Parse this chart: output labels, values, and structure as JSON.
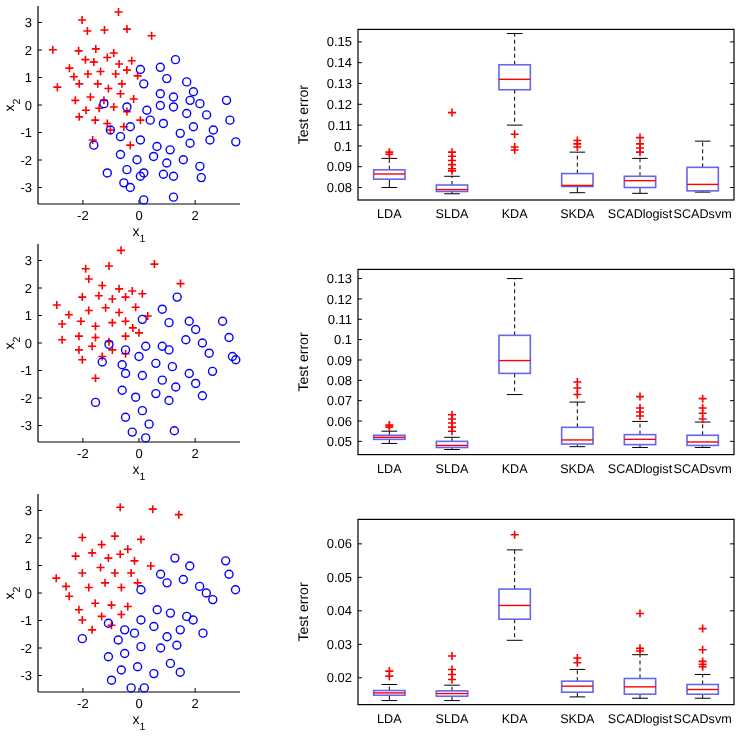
{
  "chart_data": [
    {
      "type": "scatter",
      "xlabel": "x$_{1}$",
      "ylabel": "x$_{2}$",
      "xlim": [
        -3.6,
        3.6
      ],
      "ylim": [
        -3.6,
        3.6
      ],
      "xticks": [
        -2,
        0,
        2
      ],
      "yticks": [
        -3,
        -2,
        -1,
        0,
        1,
        2,
        3
      ],
      "series": [
        {
          "color": "#ff0000",
          "marker": "cross",
          "x": [
            -3.07,
            -2.03,
            -0.73,
            -1.84,
            -1.23,
            -0.43,
            0.45,
            -2.15,
            -1.54,
            -0.9,
            -2.48,
            -1.91,
            -1.61,
            -1.13,
            -0.71,
            -0.26,
            -2.32,
            -1.82,
            -1.37,
            -0.83,
            -0.43,
            -2.91,
            -2.13,
            -1.47,
            -1.09,
            -0.61,
            -0.05,
            -2.27,
            -1.73,
            -1.25,
            -0.66,
            -0.19,
            -1.89,
            -1.42,
            -0.9,
            -0.43,
            -2.13,
            -1.56,
            -1.13,
            -0.54,
            0.05,
            -1.65,
            -1.02,
            -0.31
          ],
          "values": [
            2.01,
            3.09,
            3.38,
            2.69,
            2.73,
            2.76,
            2.52,
            1.97,
            2.04,
            1.89,
            1.34,
            1.65,
            1.56,
            1.73,
            1.49,
            1.61,
            1.03,
            1.13,
            1.22,
            1.13,
            1.27,
            0.65,
            0.77,
            0.77,
            0.6,
            0.77,
            1.06,
            0.17,
            0.29,
            0.17,
            0.41,
            0.22,
            -0.19,
            -0.12,
            -0.07,
            -0.24,
            -0.43,
            -0.55,
            -0.67,
            -0.79,
            -0.55,
            -1.27,
            -0.91,
            -1.46
          ]
        },
        {
          "color": "#0000ff",
          "marker": "circle",
          "x": [
            1.3,
            0.76,
            0.05,
            0.99,
            1.7,
            1.94,
            0.17,
            0.76,
            1.23,
            1.82,
            2.17,
            -1.25,
            -0.43,
            0.28,
            0.76,
            1.23,
            1.7,
            2.41,
            3.12,
            -1.02,
            -0.31,
            0.4,
            0.87,
            1.47,
            1.94,
            2.65,
            3.24,
            3.45,
            -0.66,
            0.05,
            0.64,
            1.11,
            1.82,
            2.53,
            -1.61,
            -0.66,
            -0.07,
            0.52,
            0.99,
            1.58,
            2.17,
            -1.13,
            -0.43,
            0.17,
            0.87,
            -0.54,
            0.05,
            -0.31,
            1.23,
            2.22,
            0.17,
            1.23
          ],
          "values": [
            1.65,
            1.37,
            1.29,
            0.96,
            0.84,
            0.48,
            0.77,
            0.41,
            0.29,
            0.17,
            0.05,
            0.05,
            -0.07,
            -0.19,
            -0.02,
            -0.07,
            -0.31,
            -0.36,
            0.17,
            -0.91,
            -0.79,
            -0.55,
            -0.67,
            -1.03,
            -0.79,
            -0.91,
            -0.55,
            -1.34,
            -1.15,
            -1.27,
            -1.51,
            -1.63,
            -1.39,
            -1.27,
            -1.46,
            -1.8,
            -1.99,
            -1.87,
            -2.11,
            -1.99,
            -2.23,
            -2.47,
            -2.35,
            -2.47,
            -2.52,
            -2.83,
            -2.59,
            -3.0,
            -2.59,
            -2.64,
            -3.45,
            -3.35
          ]
        }
      ]
    },
    {
      "type": "box",
      "ylabel": "Test error",
      "categories": [
        "LDA",
        "SLDA",
        "KDA",
        "SKDA",
        "SCADlogist",
        "SCADsvm"
      ],
      "color": "#6666ee",
      "ylim": [
        0.074,
        0.156
      ],
      "yticks": [
        0.08,
        0.09,
        0.1,
        0.11,
        0.12,
        0.13,
        0.14,
        0.15
      ],
      "boxes": [
        {
          "low": 0.08,
          "q1": 0.084,
          "median": 0.0865,
          "q3": 0.0885,
          "high": 0.094,
          "outliers": [
            0.096,
            0.097
          ]
        },
        {
          "low": 0.077,
          "q1": 0.0781,
          "median": 0.079,
          "q3": 0.0812,
          "high": 0.0854,
          "outliers": [
            0.088,
            0.089,
            0.091,
            0.093,
            0.095,
            0.097,
            0.116
          ]
        },
        {
          "low": 0.11,
          "q1": 0.127,
          "median": 0.132,
          "q3": 0.139,
          "high": 0.154,
          "outliers": [
            0.098,
            0.0995,
            0.1056
          ]
        },
        {
          "low": 0.0775,
          "q1": 0.0805,
          "median": 0.081,
          "q3": 0.0867,
          "high": 0.097,
          "outliers": [
            0.0995,
            0.101,
            0.1026
          ]
        },
        {
          "low": 0.0772,
          "q1": 0.08,
          "median": 0.0833,
          "q3": 0.0854,
          "high": 0.094,
          "outliers": [
            0.097,
            0.099,
            0.101,
            0.104
          ]
        },
        {
          "low": 0.0778,
          "q1": 0.0784,
          "median": 0.0815,
          "q3": 0.0897,
          "high": 0.1023
        }
      ]
    },
    {
      "type": "scatter",
      "xlabel": "x$_{1}$",
      "ylabel": "x$_{2}$",
      "xlim": [
        -3.6,
        3.6
      ],
      "ylim": [
        -3.6,
        3.6
      ],
      "xticks": [
        -2,
        0,
        2
      ],
      "yticks": [
        -3,
        -2,
        -1,
        0,
        1,
        2,
        3
      ],
      "series": [
        {
          "color": "#ff0000",
          "marker": "cross",
          "x": [
            -0.64,
            -1.9,
            -1.07,
            0.55,
            -1.79,
            -1.31,
            -0.71,
            -0.24,
            0.12,
            1.48,
            -2.93,
            -2.02,
            -1.43,
            -0.95,
            -0.48,
            -2.5,
            -1.79,
            -1.19,
            -0.71,
            -0.12,
            0.31,
            -2.74,
            -2.07,
            -1.55,
            -0.95,
            -0.48,
            -0.22,
            -2.74,
            -2.14,
            -1.55,
            -1.07,
            -0.48,
            0.0,
            -2.14,
            -1.67,
            -0.95,
            -2.02,
            -1.31,
            -0.48,
            -1.55
          ],
          "values": [
            3.37,
            2.7,
            2.8,
            2.87,
            2.33,
            2.09,
            1.97,
            1.89,
            1.79,
            2.16,
            1.38,
            1.67,
            1.72,
            1.6,
            1.67,
            1.03,
            1.18,
            1.28,
            1.11,
            1.3,
            0.98,
            0.69,
            0.79,
            0.61,
            0.74,
            0.79,
            0.55,
            0.12,
            0.25,
            0.2,
            0.05,
            0.25,
            0.37,
            -0.25,
            -0.12,
            -0.25,
            -0.61,
            -0.49,
            -0.39,
            -1.28
          ]
        },
        {
          "color": "#0000ff",
          "marker": "circle",
          "x": [
            1.36,
            0.83,
            0.12,
            1.07,
            1.79,
            2.02,
            2.98,
            3.21,
            -1.07,
            -0.48,
            0.24,
            0.83,
            1.07,
            1.67,
            2.26,
            2.5,
            3.33,
            3.45,
            -1.31,
            -0.6,
            0.0,
            0.6,
            1.19,
            1.79,
            2.62,
            -0.48,
            0.12,
            0.83,
            1.31,
            2.02,
            -1.55,
            -0.6,
            -0.12,
            0.6,
            1.07,
            -0.48,
            0.12,
            -0.24,
            0.36,
            1.26,
            2.26,
            0.24
          ],
          "values": [
            1.67,
            1.23,
            0.86,
            0.74,
            0.79,
            0.49,
            0.79,
            0.2,
            -0.05,
            -0.25,
            -0.12,
            -0.12,
            -0.25,
            0.12,
            0.0,
            -0.37,
            -0.49,
            -0.61,
            -0.69,
            -0.79,
            -0.49,
            -0.74,
            -0.86,
            -1.11,
            -1.03,
            -1.11,
            -1.18,
            -1.35,
            -1.6,
            -1.47,
            -2.16,
            -1.72,
            -1.97,
            -1.84,
            -2.09,
            -2.7,
            -2.46,
            -3.24,
            -2.95,
            -3.19,
            -1.92,
            -3.45
          ]
        }
      ]
    },
    {
      "type": "box",
      "ylabel": "Test error",
      "categories": [
        "LDA",
        "SLDA",
        "KDA",
        "SKDA",
        "SCADlogist",
        "SCADsvm"
      ],
      "color": "#6666ee",
      "ylim": [
        0.0435,
        0.1345
      ],
      "yticks": [
        0.05,
        0.06,
        0.07,
        0.08,
        0.09,
        0.1,
        0.11,
        0.12,
        0.13
      ],
      "boxes": [
        {
          "low": 0.049,
          "q1": 0.051,
          "median": 0.052,
          "q3": 0.053,
          "high": 0.055,
          "outliers": [
            0.057,
            0.058
          ]
        },
        {
          "low": 0.046,
          "q1": 0.047,
          "median": 0.048,
          "q3": 0.05,
          "high": 0.052,
          "outliers": [
            0.055,
            0.057,
            0.059,
            0.061,
            0.0631
          ]
        },
        {
          "low": 0.073,
          "q1": 0.0834,
          "median": 0.0897,
          "q3": 0.1021,
          "high": 0.13
        },
        {
          "low": 0.0474,
          "q1": 0.0487,
          "median": 0.0507,
          "q3": 0.0569,
          "high": 0.0693,
          "outliers": [
            0.073,
            0.0762,
            0.0792
          ]
        },
        {
          "low": 0.047,
          "q1": 0.0484,
          "median": 0.051,
          "q3": 0.0533,
          "high": 0.0598,
          "outliers": [
            0.0625,
            0.0644,
            0.0664,
            0.072
          ]
        },
        {
          "low": 0.047,
          "q1": 0.048,
          "median": 0.0497,
          "q3": 0.053,
          "high": 0.0595,
          "outliers": [
            0.061,
            0.0638,
            0.0664,
            0.071
          ]
        }
      ]
    },
    {
      "type": "scatter",
      "xlabel": "x$_{1}$",
      "ylabel": "x$_{2}$",
      "xlim": [
        -3.6,
        3.6
      ],
      "ylim": [
        -3.6,
        3.6
      ],
      "xticks": [
        -2,
        0,
        2
      ],
      "yticks": [
        -3,
        -2,
        -1,
        0,
        1,
        2,
        3
      ],
      "series": [
        {
          "color": "#ff0000",
          "marker": "cross",
          "x": [
            -0.67,
            0.49,
            1.42,
            -2.02,
            -1.33,
            -0.86,
            -0.4,
            0.07,
            -2.95,
            -2.26,
            -1.67,
            -1.09,
            -0.67,
            -0.16,
            0.42,
            -2.6,
            -2.02,
            -1.37,
            -0.86,
            -0.28,
            -2.49,
            -1.79,
            -1.21,
            -0.63,
            -0.05,
            -2.14,
            -1.56,
            -0.98,
            -0.4,
            -2.02,
            -1.33,
            -0.63,
            -1.67,
            -0.98
          ],
          "values": [
            3.12,
            3.05,
            2.85,
            2.02,
            1.76,
            2.07,
            1.59,
            1.95,
            0.54,
            1.34,
            1.46,
            1.27,
            1.41,
            1.17,
            0.98,
            0.24,
            0.73,
            0.93,
            0.73,
            0.73,
            -0.12,
            0.2,
            0.37,
            0.2,
            0.37,
            -0.61,
            -0.37,
            -0.44,
            -0.49,
            -0.98,
            -0.85,
            -0.78,
            -1.34,
            -1.17
          ]
        },
        {
          "color": "#0000ff",
          "marker": "circle",
          "x": [
            1.28,
            0.77,
            0.07,
            1.81,
            3.09,
            3.21,
            3.44,
            1.0,
            1.58,
            2.16,
            2.4,
            2.63,
            -1.09,
            -0.51,
            0.07,
            0.65,
            1.12,
            1.7,
            2.28,
            -0.74,
            -0.16,
            0.53,
            1.0,
            1.47,
            1.93,
            -2.02,
            -1.09,
            -0.51,
            0.07,
            0.77,
            1.35,
            -0.63,
            -0.05,
            0.53,
            1.12,
            -0.28,
            -0.98,
            0.19,
            1.47
          ],
          "values": [
            1.27,
            0.68,
            0.12,
            0.98,
            1.17,
            0.68,
            0.12,
            0.37,
            0.49,
            0.24,
            0.0,
            -0.24,
            -1.1,
            -1.34,
            -0.98,
            -0.61,
            -0.73,
            -0.85,
            -1.46,
            -1.71,
            -1.46,
            -1.22,
            -1.59,
            -1.34,
            -0.98,
            -1.66,
            -2.32,
            -2.2,
            -1.95,
            -2.0,
            -1.9,
            -2.8,
            -2.68,
            -2.93,
            -2.56,
            -3.45,
            -3.17,
            -3.45,
            -2.88
          ]
        }
      ]
    },
    {
      "type": "box",
      "ylabel": "Test error",
      "categories": [
        "LDA",
        "SLDA",
        "KDA",
        "SKDA",
        "SCADlogist",
        "SCADsvm"
      ],
      "color": "#6666ee",
      "ylim": [
        0.012,
        0.0673
      ],
      "yticks": [
        0.02,
        0.03,
        0.04,
        0.05,
        0.06
      ],
      "boxes": [
        {
          "low": 0.0132,
          "q1": 0.0148,
          "median": 0.0155,
          "q3": 0.0162,
          "high": 0.018,
          "outliers": [
            0.0205,
            0.022
          ]
        },
        {
          "low": 0.0132,
          "q1": 0.0145,
          "median": 0.0153,
          "q3": 0.0161,
          "high": 0.0178,
          "outliers": [
            0.0195,
            0.021,
            0.0225,
            0.0265
          ]
        },
        {
          "low": 0.0312,
          "q1": 0.0375,
          "median": 0.0416,
          "q3": 0.0465,
          "high": 0.0582,
          "outliers": [
            0.0627
          ]
        },
        {
          "low": 0.0143,
          "q1": 0.0157,
          "median": 0.0175,
          "q3": 0.019,
          "high": 0.0225,
          "outliers": [
            0.0245,
            0.0259
          ]
        },
        {
          "low": 0.0139,
          "q1": 0.0151,
          "median": 0.0173,
          "q3": 0.0198,
          "high": 0.0269,
          "outliers": [
            0.028,
            0.0288,
            0.0392
          ]
        },
        {
          "low": 0.0139,
          "q1": 0.0151,
          "median": 0.0165,
          "q3": 0.018,
          "high": 0.021,
          "outliers": [
            0.0233,
            0.024,
            0.0249,
            0.0284,
            0.0347
          ]
        }
      ]
    }
  ]
}
